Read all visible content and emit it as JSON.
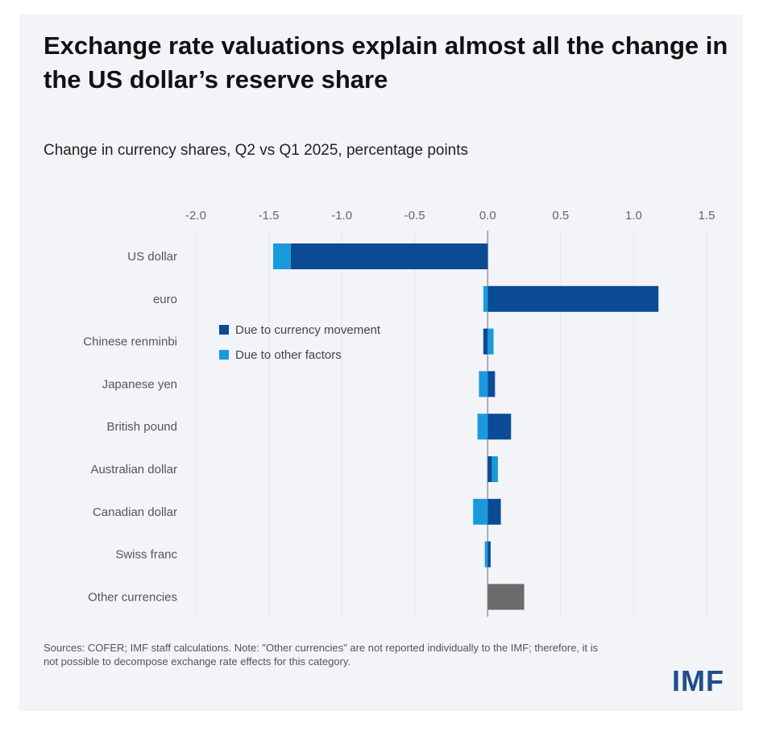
{
  "title": "Exchange rate valuations explain almost all the change in the US dollar’s reserve share",
  "subtitle": "Change in currency shares, Q2 vs Q1 2025, percentage points",
  "footnote": "Sources: COFER; IMF staff calculations. Note: \"Other currencies\" are not reported individually to the IMF; therefore, it is not possible to decompose exchange rate effects for this category.",
  "logo": "IMF",
  "colors": {
    "currency": "#0b4a94",
    "other": "#1a9ade",
    "unallocated": "#6b6b6b",
    "background": "#f2f4f7"
  },
  "chart_data": {
    "type": "bar",
    "orientation": "horizontal",
    "stacked": true,
    "title": "Change in currency shares, Q2 vs Q1 2025, percentage points",
    "categories": [
      "US dollar",
      "euro",
      "Chinese renminbi",
      "Japanese yen",
      "British pound",
      "Australian dollar",
      "Canadian dollar",
      "Swiss franc",
      "Other currencies"
    ],
    "xlim": [
      -2.0,
      1.5
    ],
    "xticks": [
      "-2.0",
      "-1.5",
      "-1.0",
      "-0.5",
      "0.0",
      "0.5",
      "1.0",
      "1.5"
    ],
    "xtick_values": [
      -2.0,
      -1.5,
      -1.0,
      -0.5,
      0.0,
      0.5,
      1.0,
      1.5
    ],
    "grid": true,
    "legend_position": "center-left",
    "series": [
      {
        "name": "Due to currency movement",
        "color": "#0b4a94",
        "values": [
          -1.35,
          1.17,
          -0.03,
          0.05,
          0.16,
          0.03,
          0.09,
          0.02,
          null
        ]
      },
      {
        "name": "Due to other factors",
        "color": "#1a9ade",
        "values": [
          -0.12,
          -0.03,
          0.04,
          -0.06,
          -0.07,
          0.04,
          -0.1,
          -0.02,
          null
        ]
      },
      {
        "name": "",
        "color": "#6b6b6b",
        "values": [
          null,
          null,
          null,
          null,
          null,
          null,
          null,
          null,
          0.25
        ]
      }
    ]
  }
}
